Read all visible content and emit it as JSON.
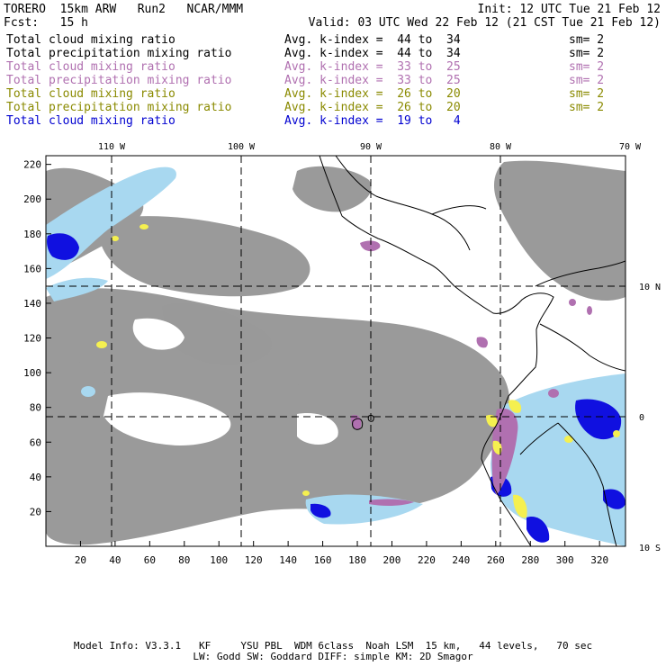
{
  "header": {
    "model": "TORERO  15km ARW   Run2   NCAR/MMM",
    "init": "Init: 12 UTC Tue 21 Feb 12",
    "fcst": "Fcst:   15 h",
    "valid": "Valid: 03 UTC Wed 22 Feb 12 (21 CST Tue 21 Feb 12)"
  },
  "legend": [
    {
      "field": "Total cloud mixing ratio",
      "index": "Avg. k-index =  44 to  34",
      "sm": "sm= 2",
      "color": "#000000"
    },
    {
      "field": "Total precipitation mixing ratio",
      "index": "Avg. k-index =  44 to  34",
      "sm": "sm= 2",
      "color": "#000000"
    },
    {
      "field": "Total cloud mixing ratio",
      "index": "Avg. k-index =  33 to  25",
      "sm": "sm= 2",
      "color": "#b070b0"
    },
    {
      "field": "Total precipitation mixing ratio",
      "index": "Avg. k-index =  33 to  25",
      "sm": "sm= 2",
      "color": "#b070b0"
    },
    {
      "field": "Total cloud mixing ratio",
      "index": "Avg. k-index =  26 to  20",
      "sm": "sm= 2",
      "color": "#8a8a00"
    },
    {
      "field": "Total precipitation mixing ratio",
      "index": "Avg. k-index =  26 to  20",
      "sm": "sm= 2",
      "color": "#8a8a00"
    },
    {
      "field": "Total cloud mixing ratio",
      "index": "Avg. k-index =  19 to   4",
      "sm": "",
      "color": "#0000d0"
    }
  ],
  "map": {
    "top_lon_labels": [
      "110 W",
      "100 W",
      "90 W",
      "80 W",
      "70 W"
    ],
    "right_lat_labels": [
      "10 N",
      "0",
      "10 S"
    ],
    "x_ticks": [
      "20",
      "40",
      "60",
      "80",
      "100",
      "120",
      "140",
      "160",
      "180",
      "200",
      "220",
      "240",
      "260",
      "280",
      "300",
      "320"
    ],
    "y_ticks": [
      "20",
      "40",
      "60",
      "80",
      "100",
      "120",
      "140",
      "160",
      "180",
      "200",
      "220"
    ],
    "colors": {
      "gray": "#9a9a9a",
      "purple": "#b070b0",
      "yellow": "#f5f050",
      "blue": "#1010e0",
      "lightblue": "#a8d8f0"
    }
  },
  "footer": {
    "line1": "Model Info: V3.3.1   KF     YSU PBL  WDM 6class  Noah LSM  15 km,   44 levels,   70 sec",
    "line2": "LW: Godd SW: Goddard DIFF: simple KM: 2D Smagor"
  }
}
